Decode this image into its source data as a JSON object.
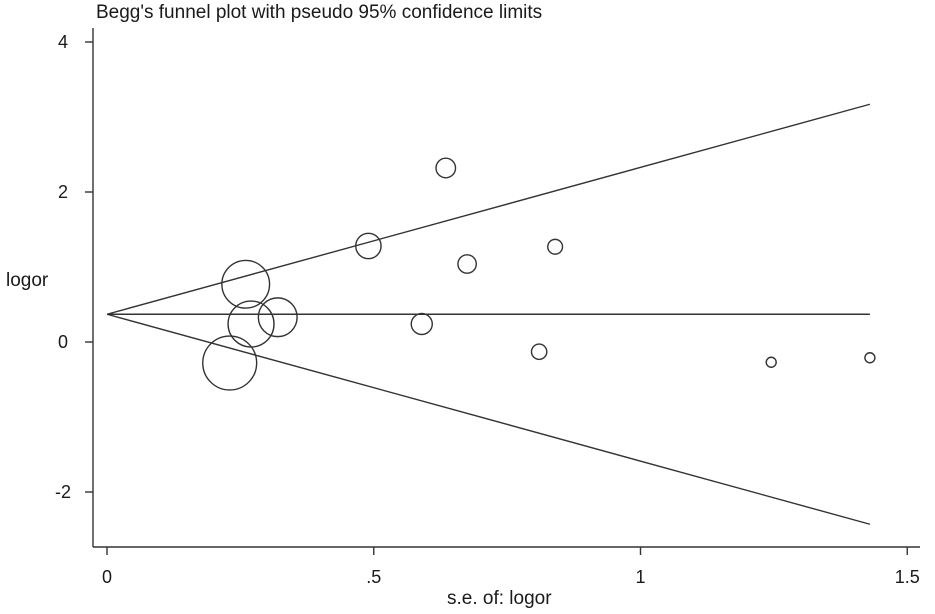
{
  "chart_data": {
    "type": "scatter",
    "title": "Begg's funnel plot with pseudo 95% confidence limits",
    "xlabel": "s.e. of: logor",
    "ylabel": "logor",
    "xlim": [
      0,
      1.5
    ],
    "ylim": [
      -2,
      4
    ],
    "x_ticks": [
      {
        "value": 0,
        "label": "0"
      },
      {
        "value": 0.5,
        "label": ".5"
      },
      {
        "value": 1,
        "label": "1"
      },
      {
        "value": 1.5,
        "label": "1.5"
      }
    ],
    "y_ticks": [
      {
        "value": -2,
        "label": "-2"
      },
      {
        "value": 0,
        "label": "0"
      },
      {
        "value": 2,
        "label": "2"
      },
      {
        "value": 4,
        "label": "4"
      }
    ],
    "pooled_estimate": 0.37,
    "confidence_limits": {
      "se_max": 1.43,
      "upper_at_se_max": 3.17,
      "lower_at_se_max": -2.43
    },
    "points": [
      {
        "se": 0.26,
        "logor": 0.77
      },
      {
        "se": 0.27,
        "logor": 0.24
      },
      {
        "se": 0.32,
        "logor": 0.33
      },
      {
        "se": 0.23,
        "logor": -0.28
      },
      {
        "se": 0.49,
        "logor": 1.28
      },
      {
        "se": 0.59,
        "logor": 0.24
      },
      {
        "se": 0.635,
        "logor": 2.32
      },
      {
        "se": 0.675,
        "logor": 1.04
      },
      {
        "se": 0.81,
        "logor": -0.13
      },
      {
        "se": 0.84,
        "logor": 1.27
      },
      {
        "se": 1.245,
        "logor": -0.27
      },
      {
        "se": 1.43,
        "logor": -0.21
      }
    ]
  }
}
